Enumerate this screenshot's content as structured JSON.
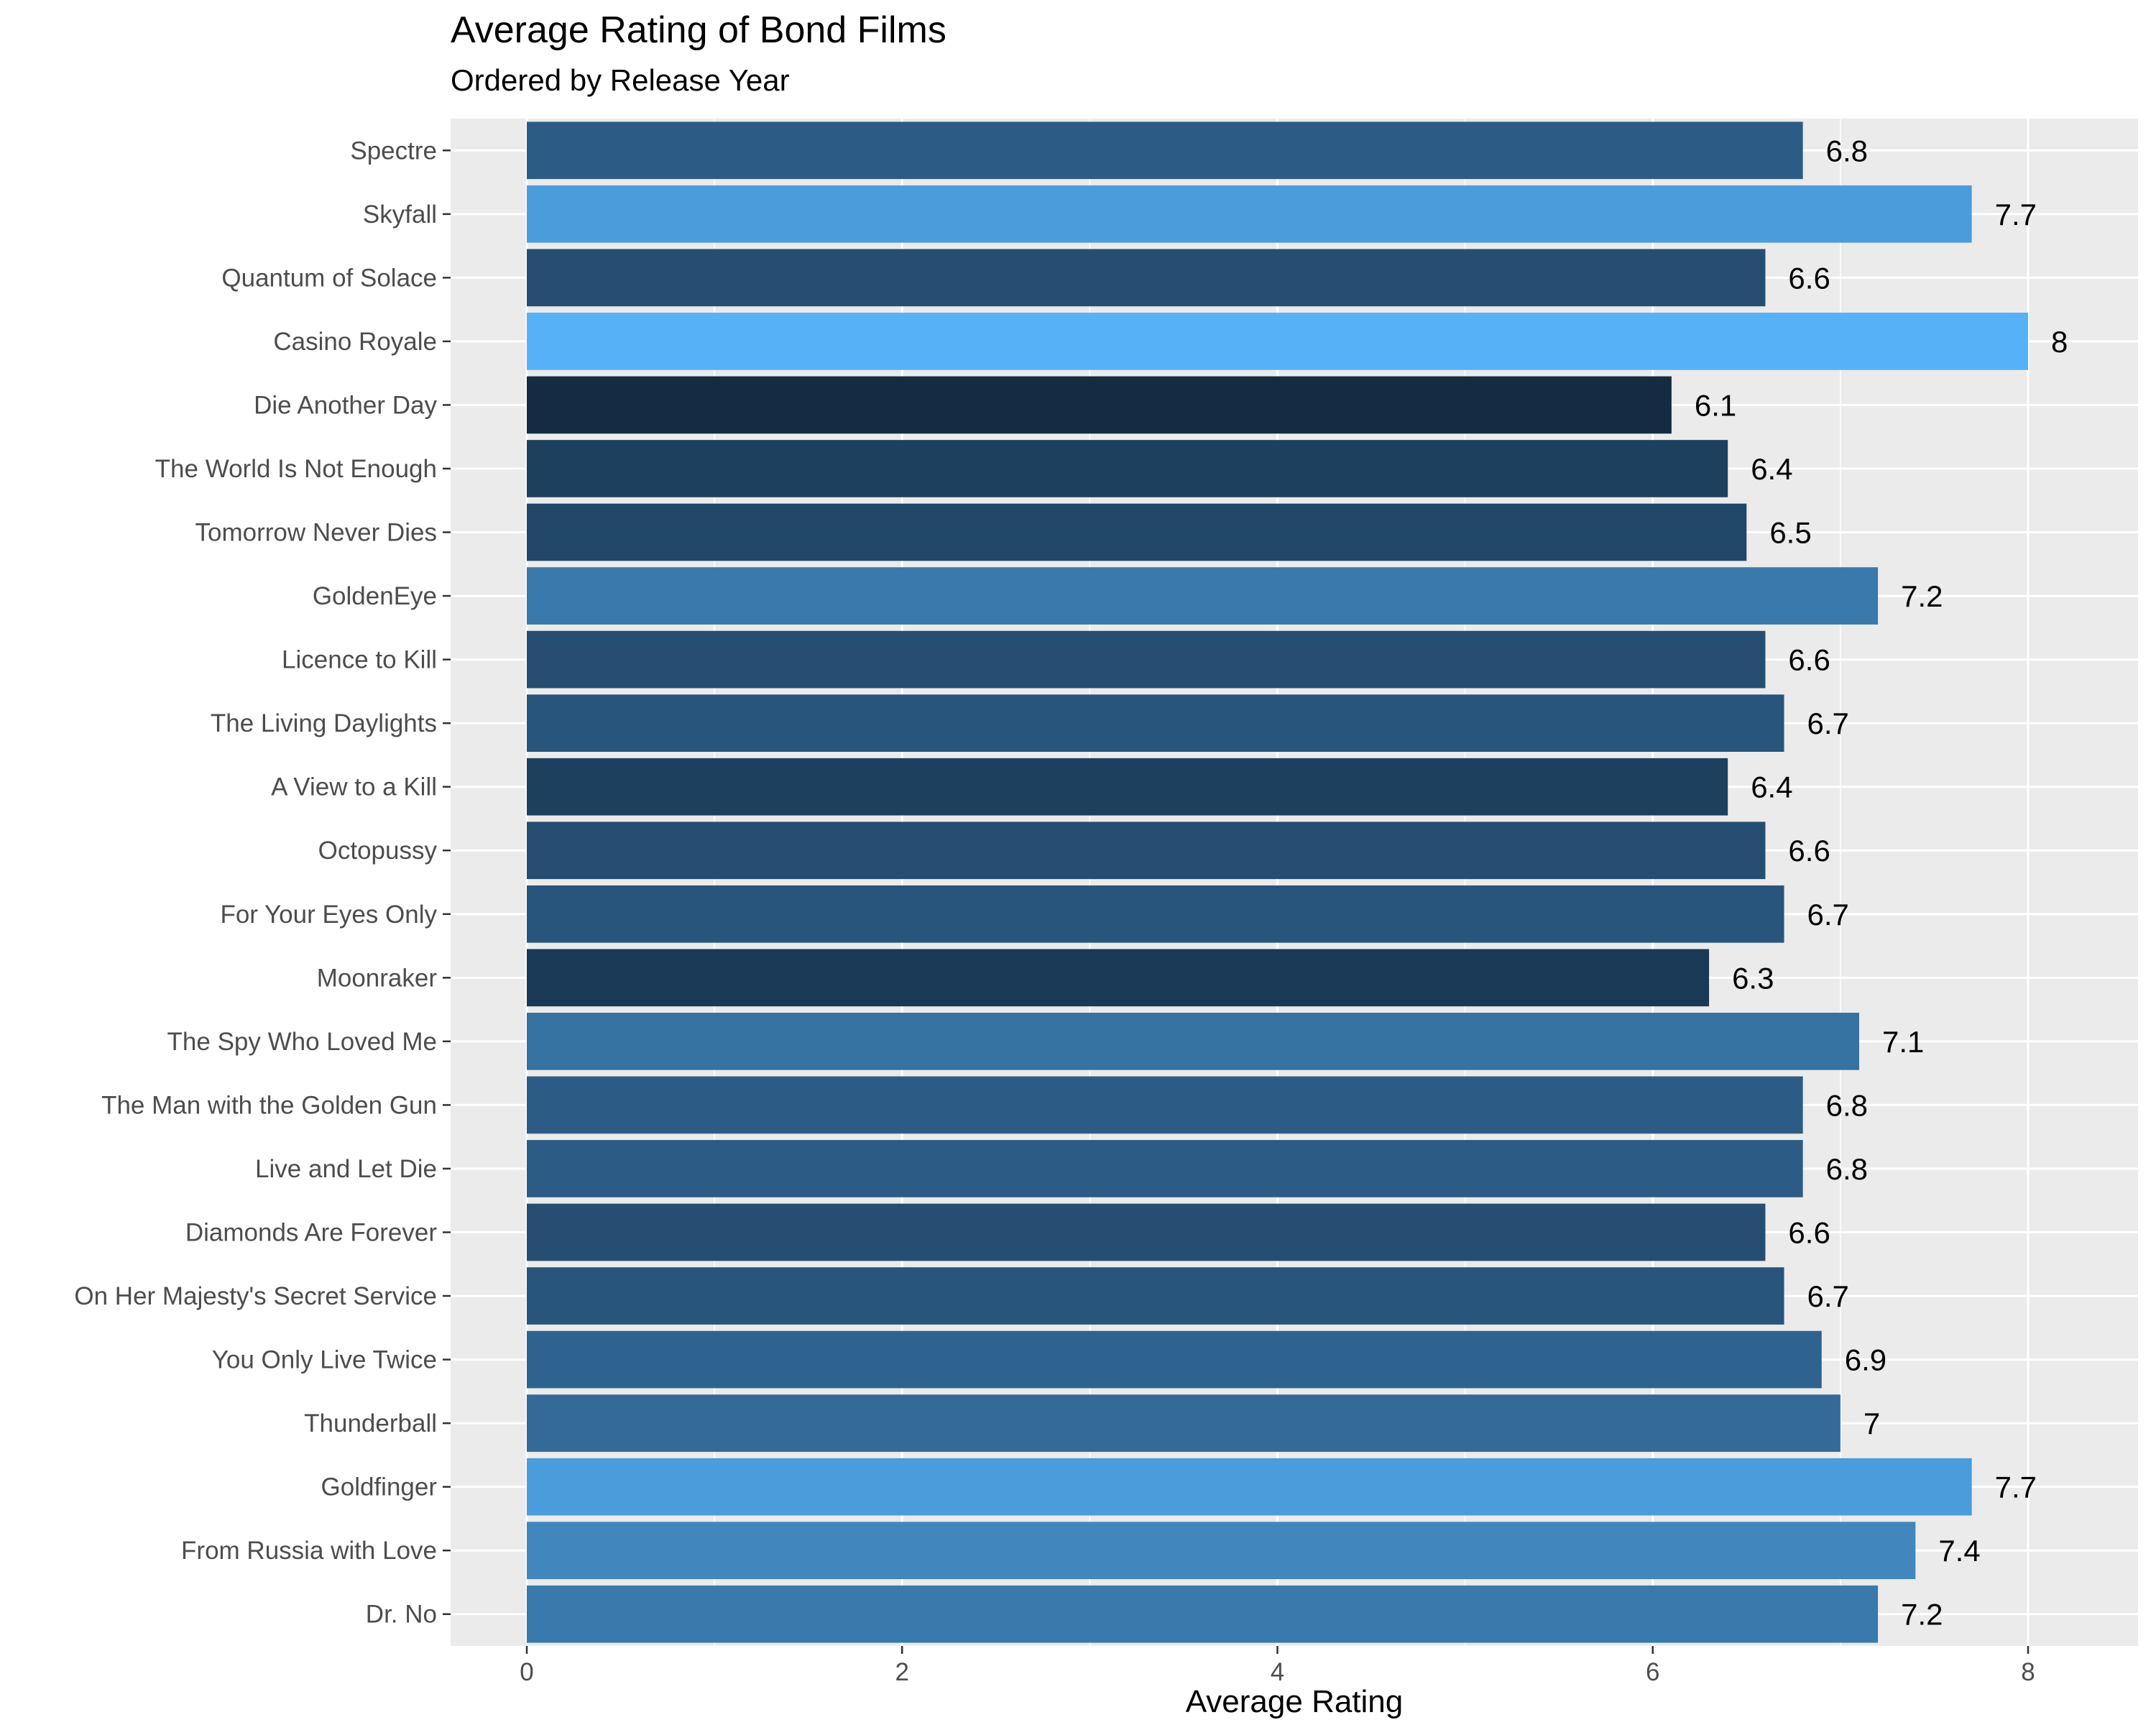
{
  "chart_data": {
    "type": "bar",
    "orientation": "horizontal",
    "title": "Average Rating of Bond Films",
    "subtitle": "Ordered by Release Year",
    "xlabel": "Average Rating",
    "ylabel": "",
    "xlim": [
      0,
      8.5
    ],
    "x_ticks": [
      0,
      2,
      4,
      6,
      8
    ],
    "grid": true,
    "legend": "none",
    "color_scale": {
      "low": "#132b43",
      "high": "#56b1f7"
    },
    "categories": [
      "Spectre",
      "Skyfall",
      "Quantum of Solace",
      "Casino Royale",
      "Die Another Day",
      "The World Is Not Enough",
      "Tomorrow Never Dies",
      "GoldenEye",
      "Licence to Kill",
      "The Living Daylights",
      "A View to a Kill",
      "Octopussy",
      "For Your Eyes Only",
      "Moonraker",
      "The Spy Who Loved Me",
      "The Man with the Golden Gun",
      "Live and Let Die",
      "Diamonds Are Forever",
      "On Her Majesty's Secret Service",
      "You Only Live Twice",
      "Thunderball",
      "Goldfinger",
      "From Russia with Love",
      "Dr. No"
    ],
    "values": [
      6.8,
      7.7,
      6.6,
      8,
      6.1,
      6.4,
      6.5,
      7.2,
      6.6,
      6.7,
      6.4,
      6.6,
      6.7,
      6.3,
      7.1,
      6.8,
      6.8,
      6.6,
      6.7,
      6.9,
      7,
      7.7,
      7.4,
      7.2
    ]
  }
}
